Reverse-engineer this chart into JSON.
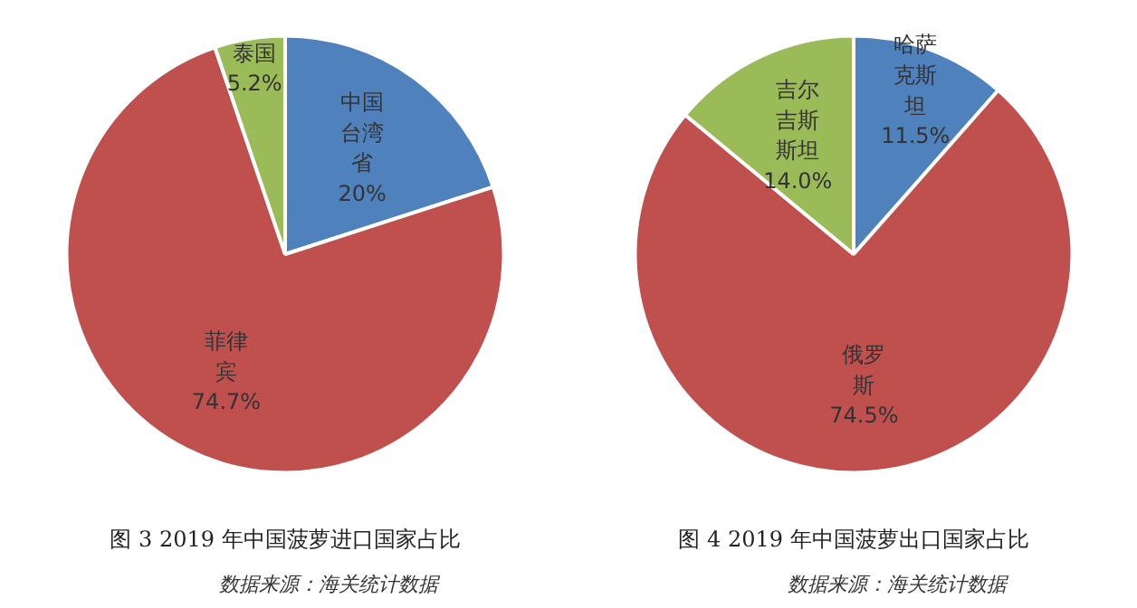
{
  "chart_data": [
    {
      "type": "pie",
      "title": "图 3 2019 年中国菠萝进口国家占比",
      "annotations": [
        "数据来源：海关统计数据"
      ],
      "categories": [
        "中国台湾省",
        "菲律宾",
        "泰国"
      ],
      "values": [
        20,
        74.7,
        5.2
      ],
      "value_labels": [
        "20%",
        "74.7%",
        "5.2%"
      ],
      "colors": [
        "#4f81bd",
        "#c0504d",
        "#9bbb59"
      ],
      "legend": false
    },
    {
      "type": "pie",
      "title": "图 4 2019 年中国菠萝出口国家占比",
      "annotations": [
        "数据来源：海关统计数据"
      ],
      "categories": [
        "哈萨克斯坦",
        "俄罗斯",
        "吉尔吉斯斯坦"
      ],
      "values": [
        11.5,
        74.5,
        14.0
      ],
      "value_labels": [
        "11.5%",
        "74.5%",
        "14.0%"
      ],
      "colors": [
        "#4f81bd",
        "#c0504d",
        "#9bbb59"
      ],
      "legend": false
    }
  ]
}
